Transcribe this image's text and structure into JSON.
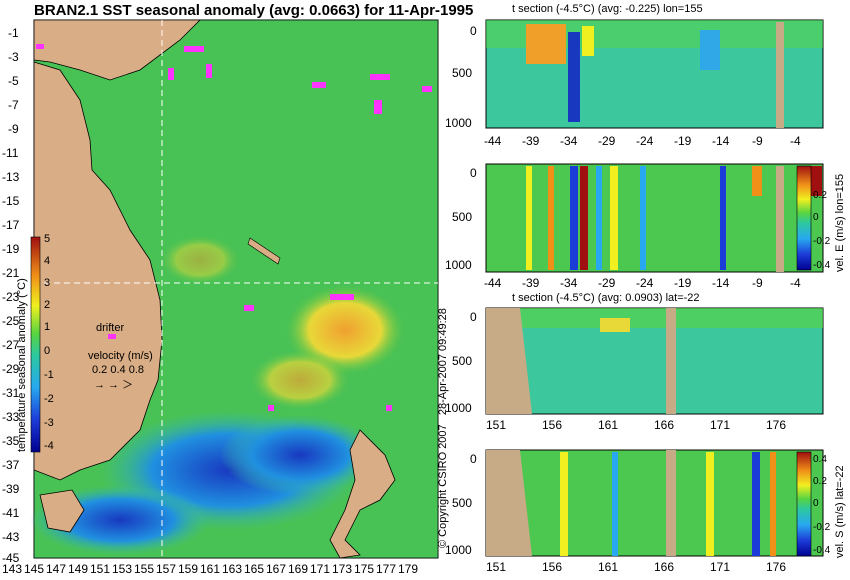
{
  "main_title": "BRAN2.1 SST seasonal anomaly (avg: 0.0663) for 11-Apr-1995",
  "copyright": "© Copyright CSIRO 2007",
  "timestamp": "28-Apr-2007 09:49:28",
  "colors": {
    "land": "#d9ad85",
    "tan": "#c7aa86",
    "drifter": "#ff33ff",
    "section_gap": "#c7aa86"
  },
  "chart_data": [
    {
      "type": "heatmap",
      "name": "sst_anomaly_map",
      "x_ticks": [
        "143",
        "145",
        "147",
        "149",
        "151",
        "153",
        "155",
        "157",
        "159",
        "161",
        "163",
        "165",
        "167",
        "169",
        "171",
        "173",
        "175",
        "177",
        "179"
      ],
      "y_ticks": [
        "-1",
        "-3",
        "-5",
        "-7",
        "-9",
        "-11",
        "-13",
        "-15",
        "-17",
        "-19",
        "-21",
        "-23",
        "-25",
        "-27",
        "-29",
        "-31",
        "-33",
        "-35",
        "-37",
        "-39",
        "-41",
        "-43",
        "-45"
      ],
      "xlim": [
        143,
        180
      ],
      "ylim": [
        -45,
        0
      ],
      "colorbar": {
        "label": "temperature seasonal anomaly (°C)",
        "ticks": [
          "5",
          "4",
          "3",
          "2",
          "1",
          "0",
          "-1",
          "-2",
          "-3",
          "-4"
        ],
        "range": [
          -4,
          5
        ]
      },
      "legend": {
        "drifter_label": "drifter",
        "velocity_label": "velocity (m/s)",
        "velocity_values": "0.2 0.4 0.8"
      }
    },
    {
      "type": "heatmap",
      "name": "temp_section_lon",
      "title": "t section (-4.5°C) (avg: -0.225) lon=155",
      "x_ticks": [
        "-44",
        "-39",
        "-34",
        "-29",
        "-24",
        "-19",
        "-14",
        "-9",
        "-4"
      ],
      "y_ticks": [
        "0",
        "500",
        "1000"
      ],
      "xlim": [
        -45,
        -1
      ],
      "ylim": [
        1050,
        0
      ]
    },
    {
      "type": "heatmap",
      "name": "vel_e_section_lon",
      "x_ticks": [
        "-44",
        "-39",
        "-34",
        "-29",
        "-24",
        "-19",
        "-14",
        "-9",
        "-4"
      ],
      "y_ticks": [
        "0",
        "500",
        "1000"
      ],
      "xlim": [
        -45,
        -1
      ],
      "ylim": [
        1050,
        0
      ],
      "colorbar": {
        "label": "vel. E (m/s) lon=155",
        "ticks": [
          "0.2",
          "0",
          "-0.2",
          "-0.4"
        ],
        "range": [
          -0.4,
          0.4
        ]
      }
    },
    {
      "type": "heatmap",
      "name": "temp_section_lat",
      "title": "t section (-4.5°C) (avg: 0.0903) lat=-22",
      "x_ticks": [
        "151",
        "156",
        "161",
        "166",
        "171",
        "176"
      ],
      "y_ticks": [
        "0",
        "500",
        "1000"
      ],
      "xlim": [
        150,
        180
      ],
      "ylim": [
        1050,
        0
      ]
    },
    {
      "type": "heatmap",
      "name": "vel_s_section_lat",
      "x_ticks": [
        "151",
        "156",
        "161",
        "166",
        "171",
        "176"
      ],
      "y_ticks": [
        "0",
        "500",
        "1000"
      ],
      "xlim": [
        150,
        180
      ],
      "ylim": [
        1050,
        0
      ],
      "colorbar": {
        "label": "vel. S (m/s) lat=-22",
        "ticks": [
          "0.4",
          "0.2",
          "0",
          "-0.2",
          "-0.4"
        ],
        "range": [
          -0.4,
          0.4
        ]
      }
    }
  ]
}
